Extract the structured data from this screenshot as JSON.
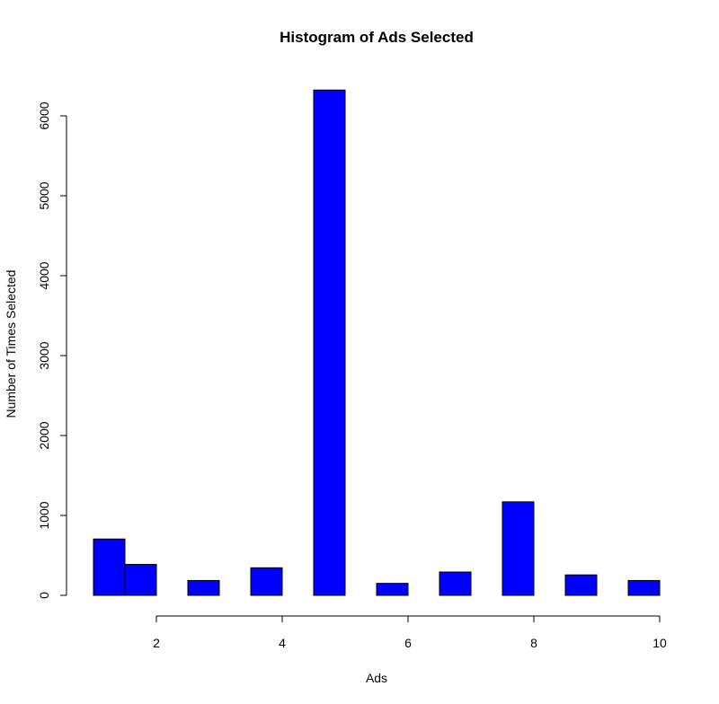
{
  "chart_data": {
    "type": "bar",
    "title": "Histogram of Ads Selected",
    "xlabel": "Ads",
    "ylabel": "Number of Times Selected",
    "bar_color": "#0000ff",
    "bar_edge_color": "#000000",
    "bins": [
      {
        "x0": 1.0,
        "x1": 1.5,
        "value": 705
      },
      {
        "x0": 1.5,
        "x1": 2.0,
        "value": 387
      },
      {
        "x0": 2.5,
        "x1": 3.0,
        "value": 186
      },
      {
        "x0": 3.5,
        "x1": 4.0,
        "value": 345
      },
      {
        "x0": 4.5,
        "x1": 5.0,
        "value": 6323
      },
      {
        "x0": 5.5,
        "x1": 6.0,
        "value": 150
      },
      {
        "x0": 6.5,
        "x1": 7.0,
        "value": 292
      },
      {
        "x0": 7.5,
        "x1": 8.0,
        "value": 1170
      },
      {
        "x0": 8.5,
        "x1": 9.0,
        "value": 256
      },
      {
        "x0": 9.5,
        "x1": 10.0,
        "value": 186
      }
    ],
    "xlim": [
      1,
      10
    ],
    "ylim": [
      0,
      6323
    ],
    "x_ticks": [
      2,
      4,
      6,
      8,
      10
    ],
    "y_ticks": [
      0,
      1000,
      2000,
      3000,
      4000,
      5000,
      6000
    ],
    "grid": false,
    "legend": "none"
  }
}
